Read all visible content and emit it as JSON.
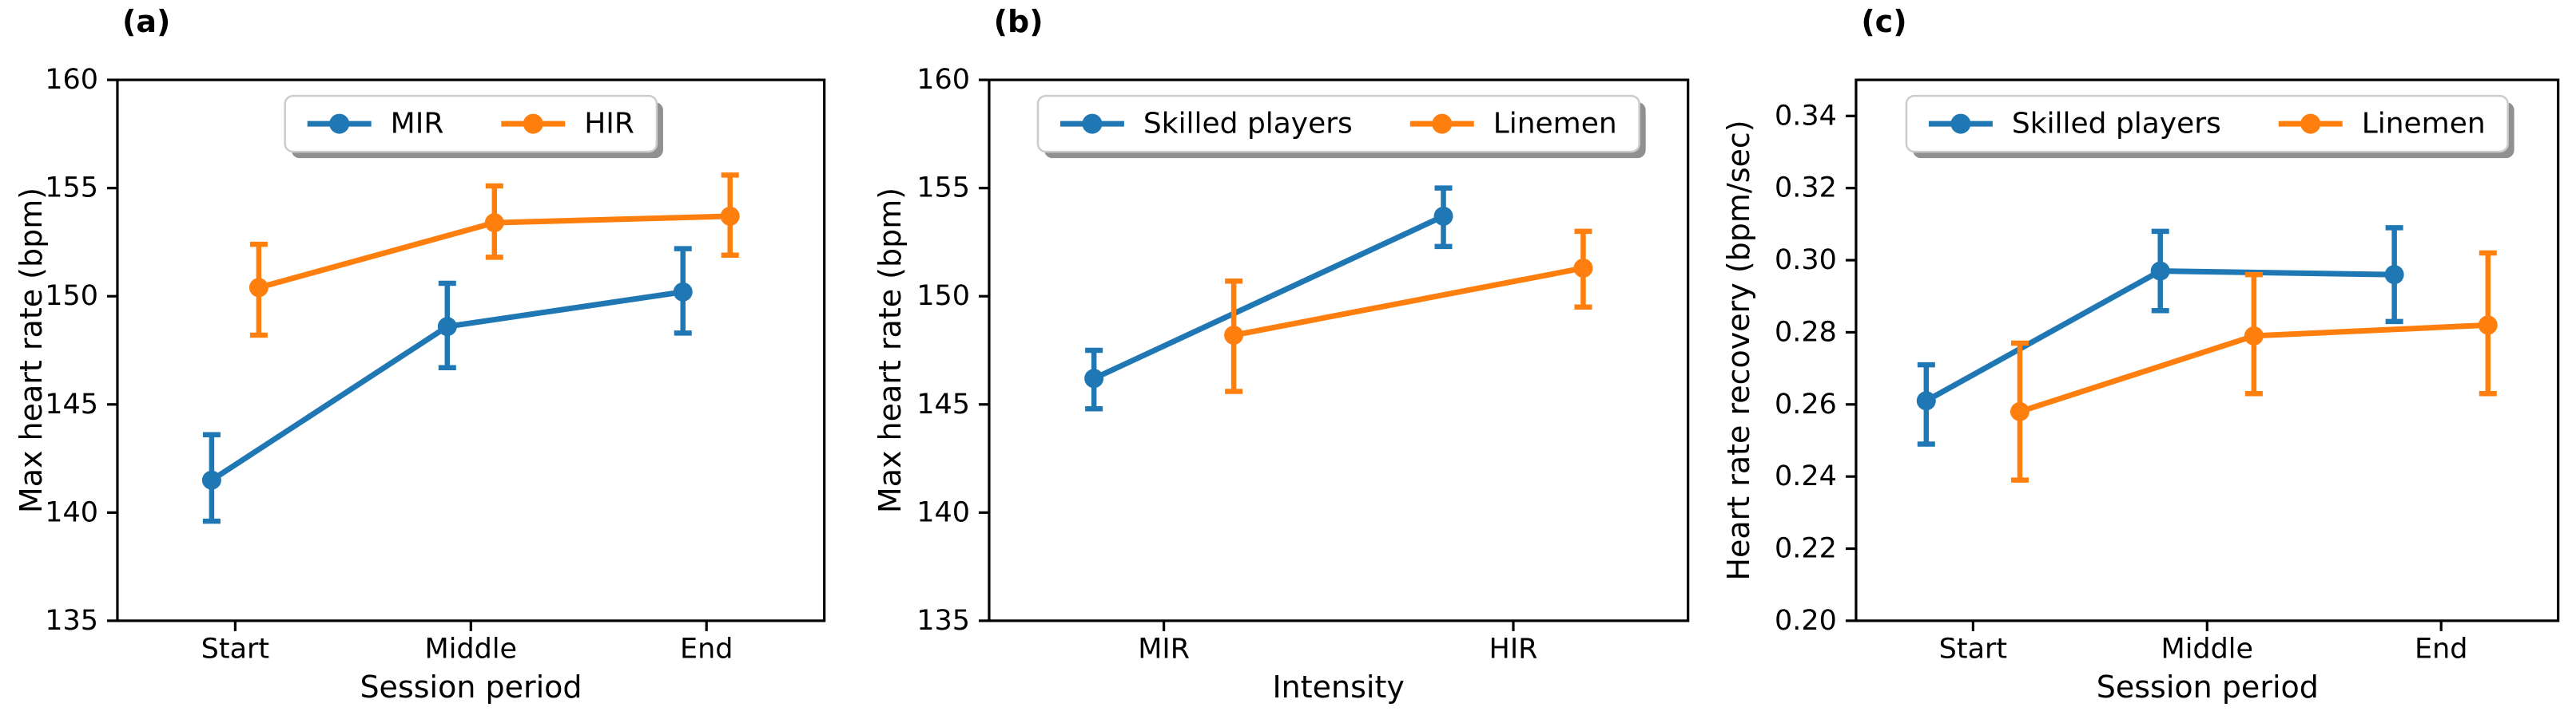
{
  "figure": {
    "background": "#ffffff",
    "text_color": "#000000",
    "accent_blue": "#1f77b4",
    "accent_orange": "#ff7f0e",
    "legend_border_color": "#cccccc",
    "legend_shadow_color": "#909090"
  },
  "chart_data": [
    {
      "id": "a",
      "panel_label": "(a)",
      "type": "line",
      "xlabel": "Session period",
      "ylabel": "Max heart rate (bpm)",
      "categories": [
        "Start",
        "Middle",
        "End"
      ],
      "ylim": [
        135,
        160
      ],
      "yticks": [
        135,
        140,
        145,
        150,
        155,
        160
      ],
      "ytick_decimals": 0,
      "grid": false,
      "legend_position": "upper center",
      "dodge": 0.1,
      "series": [
        {
          "name": "MIR",
          "color": "#1f77b4",
          "values": [
            141.5,
            148.6,
            150.2
          ],
          "err_low": [
            139.6,
            146.7,
            148.3
          ],
          "err_high": [
            143.6,
            150.6,
            152.2
          ]
        },
        {
          "name": "HIR",
          "color": "#ff7f0e",
          "values": [
            150.4,
            153.4,
            153.7
          ],
          "err_low": [
            148.2,
            151.8,
            151.9
          ],
          "err_high": [
            152.4,
            155.1,
            155.6
          ]
        }
      ]
    },
    {
      "id": "b",
      "panel_label": "(b)",
      "type": "line",
      "xlabel": "Intensity",
      "ylabel": "Max heart rate (bpm)",
      "categories": [
        "MIR",
        "HIR"
      ],
      "ylim": [
        135,
        160
      ],
      "yticks": [
        135,
        140,
        145,
        150,
        155,
        160
      ],
      "ytick_decimals": 0,
      "grid": false,
      "legend_position": "upper center",
      "dodge": 0.2,
      "series": [
        {
          "name": "Skilled players",
          "color": "#1f77b4",
          "values": [
            146.2,
            153.7
          ],
          "err_low": [
            144.8,
            152.3
          ],
          "err_high": [
            147.5,
            155.0
          ]
        },
        {
          "name": "Linemen",
          "color": "#ff7f0e",
          "values": [
            148.2,
            151.3
          ],
          "err_low": [
            145.6,
            149.5
          ],
          "err_high": [
            150.7,
            153.0
          ]
        }
      ]
    },
    {
      "id": "c",
      "panel_label": "(c)",
      "type": "line",
      "xlabel": "Session period",
      "ylabel": "Heart rate recovery (bpm/sec)",
      "categories": [
        "Start",
        "Middle",
        "End"
      ],
      "ylim": [
        0.2,
        0.35
      ],
      "yticks": [
        0.2,
        0.22,
        0.24,
        0.26,
        0.28,
        0.3,
        0.32,
        0.34
      ],
      "ytick_decimals": 2,
      "grid": false,
      "legend_position": "upper center",
      "dodge": 0.2,
      "series": [
        {
          "name": "Skilled players",
          "color": "#1f77b4",
          "values": [
            0.261,
            0.297,
            0.296
          ],
          "err_low": [
            0.249,
            0.286,
            0.283
          ],
          "err_high": [
            0.271,
            0.308,
            0.309
          ]
        },
        {
          "name": "Linemen",
          "color": "#ff7f0e",
          "values": [
            0.258,
            0.279,
            0.282
          ],
          "err_low": [
            0.239,
            0.263,
            0.263
          ],
          "err_high": [
            0.277,
            0.296,
            0.302
          ]
        }
      ]
    }
  ]
}
